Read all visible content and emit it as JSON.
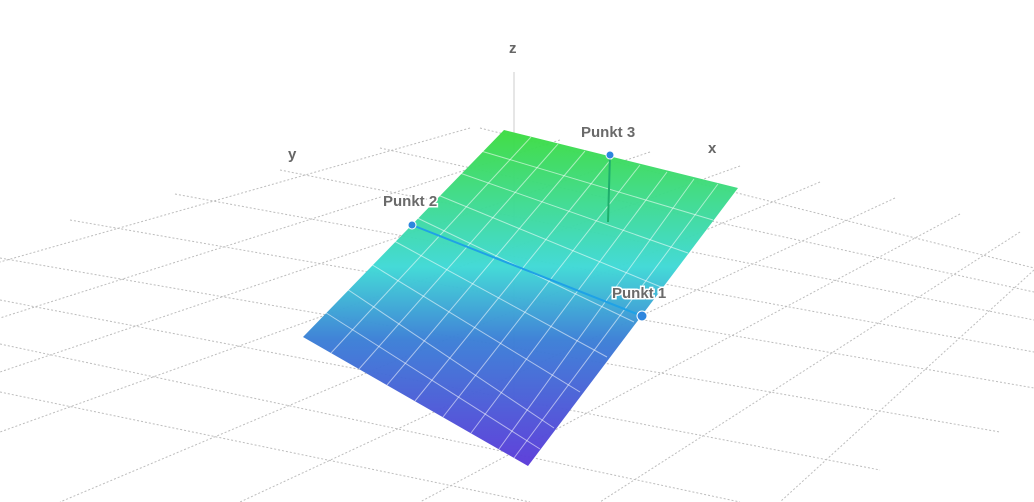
{
  "axes": {
    "x_label": "x",
    "y_label": "y",
    "z_label": "z"
  },
  "points": [
    {
      "id": "1",
      "label": "Punkt 1"
    },
    {
      "id": "2",
      "label": "Punkt 2"
    },
    {
      "id": "3",
      "label": "Punkt 3"
    }
  ],
  "colors": {
    "plane_top": "#3ddc45",
    "plane_mid": "#3fd9d6",
    "plane_low": "#3b7fd6",
    "plane_bottom": "#5b3bd9",
    "point": "#2e86de",
    "segment": "#1fa2e6",
    "point3_stem": "#1fae6c",
    "grid": "#bdbdbd",
    "axis": "#cccccc",
    "label": "#666666"
  }
}
